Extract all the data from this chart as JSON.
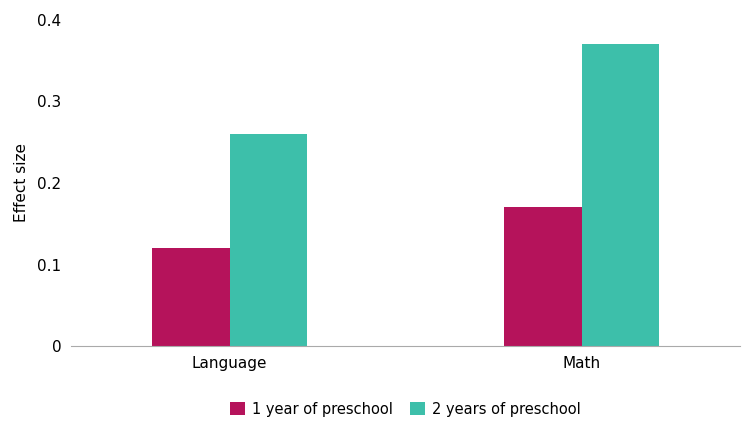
{
  "categories": [
    "Language",
    "Math"
  ],
  "series": [
    {
      "label": "1 year of preschool",
      "values": [
        0.12,
        0.17
      ],
      "color": "#b5135b"
    },
    {
      "label": "2 years of preschool",
      "values": [
        0.26,
        0.37
      ],
      "color": "#3dbfaa"
    }
  ],
  "ylabel": "Effect size",
  "ylim": [
    0,
    0.4
  ],
  "yticks": [
    0,
    0.1,
    0.2,
    0.3,
    0.4
  ],
  "bar_width": 0.22,
  "background_color": "#ffffff",
  "tick_label_fontsize": 11,
  "ylabel_fontsize": 11,
  "legend_fontsize": 10.5
}
